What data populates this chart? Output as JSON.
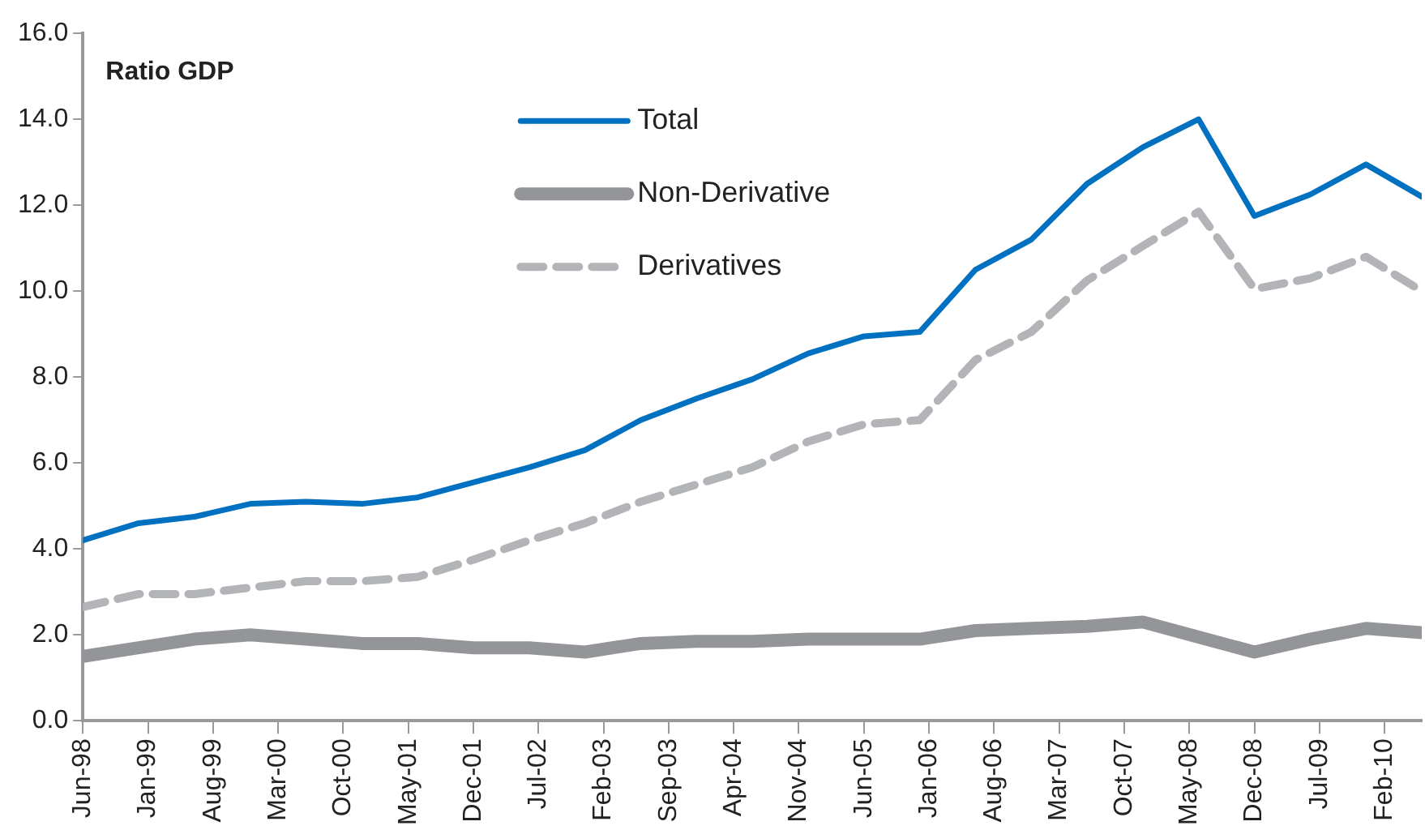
{
  "chart_data": {
    "type": "line",
    "ylabel": "Ratio GDP",
    "x": [
      "1998-06",
      "1998-12",
      "1999-06",
      "1999-12",
      "2000-06",
      "2000-12",
      "2001-06",
      "2001-12",
      "2002-06",
      "2002-12",
      "2003-06",
      "2003-12",
      "2004-06",
      "2004-12",
      "2005-06",
      "2005-12",
      "2006-06",
      "2006-12",
      "2007-06",
      "2007-12",
      "2008-06",
      "2008-12",
      "2009-06",
      "2009-12",
      "2010-06"
    ],
    "series": [
      {
        "name": "Total",
        "color": "#0070c0",
        "line_style": "solid",
        "values": [
          4.2,
          4.6,
          4.75,
          5.05,
          5.1,
          5.05,
          5.2,
          5.55,
          5.9,
          6.3,
          7.0,
          7.5,
          7.95,
          8.55,
          8.95,
          9.05,
          10.5,
          11.2,
          12.5,
          13.35,
          14.0,
          11.75,
          12.25,
          12.95,
          12.2
        ]
      },
      {
        "name": "Non-Derivative",
        "color": "#939598",
        "line_style": "solid",
        "values": [
          1.5,
          1.7,
          1.9,
          2.0,
          1.9,
          1.8,
          1.8,
          1.7,
          1.7,
          1.6,
          1.8,
          1.85,
          1.85,
          1.9,
          1.9,
          1.9,
          2.1,
          2.15,
          2.2,
          2.3,
          1.95,
          1.6,
          1.9,
          2.15,
          2.05
        ]
      },
      {
        "name": "Derivatives",
        "color": "#b3b4b7",
        "line_style": "dashed",
        "values": [
          2.65,
          2.95,
          2.95,
          3.1,
          3.25,
          3.25,
          3.35,
          3.75,
          4.2,
          4.6,
          5.1,
          5.5,
          5.9,
          6.5,
          6.9,
          7.0,
          8.4,
          9.05,
          10.25,
          11.05,
          11.85,
          10.05,
          10.3,
          10.8,
          10.0
        ]
      }
    ],
    "ylim": [
      0,
      16
    ],
    "yticks": [
      {
        "value": 0,
        "label": "0.0"
      },
      {
        "value": 2,
        "label": "2.0"
      },
      {
        "value": 4,
        "label": "4.0"
      },
      {
        "value": 6,
        "label": "6.0"
      },
      {
        "value": 8,
        "label": "8.0"
      },
      {
        "value": 10,
        "label": "10.0"
      },
      {
        "value": 12,
        "label": "12.0"
      },
      {
        "value": 14,
        "label": "14.0"
      },
      {
        "value": 16,
        "label": "16.0"
      }
    ],
    "xlim": [
      "1998-06",
      "2010-06"
    ],
    "xticks": [
      {
        "value": "1998-06",
        "label": "Jun-98"
      },
      {
        "value": "1999-01",
        "label": "Jan-99"
      },
      {
        "value": "1999-08",
        "label": "Aug-99"
      },
      {
        "value": "2000-03",
        "label": "Mar-00"
      },
      {
        "value": "2000-10",
        "label": "Oct-00"
      },
      {
        "value": "2001-05",
        "label": "May-01"
      },
      {
        "value": "2001-12",
        "label": "Dec-01"
      },
      {
        "value": "2002-07",
        "label": "Jul-02"
      },
      {
        "value": "2003-02",
        "label": "Feb-03"
      },
      {
        "value": "2003-09",
        "label": "Sep-03"
      },
      {
        "value": "2004-04",
        "label": "Apr-04"
      },
      {
        "value": "2004-11",
        "label": "Nov-04"
      },
      {
        "value": "2005-06",
        "label": "Jun-05"
      },
      {
        "value": "2006-01",
        "label": "Jan-06"
      },
      {
        "value": "2006-08",
        "label": "Aug-06"
      },
      {
        "value": "2007-03",
        "label": "Mar-07"
      },
      {
        "value": "2007-10",
        "label": "Oct-07"
      },
      {
        "value": "2008-05",
        "label": "May-08"
      },
      {
        "value": "2008-12",
        "label": "Dec-08"
      },
      {
        "value": "2009-07",
        "label": "Jul-09"
      },
      {
        "value": "2010-02",
        "label": "Feb-10"
      }
    ],
    "grid": false,
    "legend": "top",
    "marker": "none"
  }
}
